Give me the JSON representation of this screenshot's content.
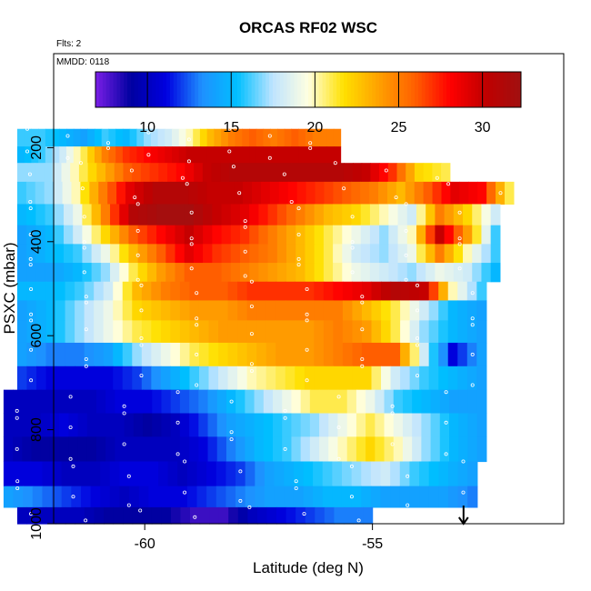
{
  "chart_data": {
    "type": "heatmap",
    "title": "ORCAS RF02 WSC",
    "flights_note": "Flts: 2",
    "date_note": "MMDD: 0118",
    "xlabel": "Latitude (deg N)",
    "ylabel": "PSXC (mbar)",
    "xlim": [
      -62.0,
      -50.8
    ],
    "ylim": [
      1000,
      0
    ],
    "x_ticks": [
      -60,
      -55
    ],
    "x_tick_labels": [
      "-60",
      "-55"
    ],
    "y_ticks": [
      200,
      400,
      600,
      800,
      1000
    ],
    "y_tick_labels": [
      "200",
      "400",
      "600",
      "800",
      "1000"
    ],
    "colorbar": {
      "range": [
        6.9,
        32.3
      ],
      "ticks": [
        10,
        15,
        20,
        25,
        30
      ],
      "tick_labels": [
        "10",
        "15",
        "20",
        "25",
        "30"
      ],
      "colors": [
        "#7a1fe6",
        "#0000a0",
        "#0000e0",
        "#1e90ff",
        "#00bfff",
        "#bfe4ff",
        "#ffffe0",
        "#ffe000",
        "#ffa000",
        "#ff6000",
        "#ff0000",
        "#c00000",
        "#a01010"
      ]
    },
    "marker": {
      "x": -53.0,
      "label": ""
    },
    "layers": [
      {
        "p": 180,
        "x0": -62.8,
        "x1": -55.7,
        "v": [
          16,
          16,
          15,
          14,
          16,
          15,
          17,
          18,
          20,
          23,
          25,
          26,
          25,
          26,
          25,
          25
        ]
      },
      {
        "p": 215,
        "x0": -62.8,
        "x1": -55.7,
        "v": [
          15,
          16,
          18,
          21,
          25,
          27,
          28,
          29,
          30,
          30,
          30,
          30,
          30,
          30,
          30,
          30
        ]
      },
      {
        "p": 250,
        "x0": -62.8,
        "x1": -53.3,
        "v": [
          17,
          17,
          20,
          23,
          26,
          27,
          28,
          30,
          31,
          31,
          31,
          31,
          31,
          30,
          27,
          22,
          21
        ]
      },
      {
        "p": 295,
        "x0": -62.8,
        "x1": -51.9,
        "v": [
          16,
          17,
          20,
          25,
          29,
          31,
          31,
          30,
          30,
          29,
          28,
          27,
          26,
          25,
          23,
          26,
          29,
          28,
          21
        ]
      },
      {
        "p": 345,
        "x0": -62.8,
        "x1": -52.2,
        "v": [
          15,
          16,
          19,
          25,
          31,
          32,
          32,
          30,
          29,
          27,
          25,
          23,
          22,
          20,
          18,
          25,
          22,
          18
        ]
      },
      {
        "p": 385,
        "x0": -62.8,
        "x1": -52.2,
        "v": [
          14,
          15,
          18,
          22,
          26,
          28,
          30,
          28,
          27,
          25,
          23,
          21,
          19,
          17,
          20,
          30,
          24,
          16
        ]
      },
      {
        "p": 425,
        "x0": -62.8,
        "x1": -52.2,
        "v": [
          14,
          15,
          16,
          19,
          23,
          26,
          29,
          27,
          26,
          25,
          23,
          21,
          18,
          17,
          19,
          25,
          20,
          16
        ]
      },
      {
        "p": 465,
        "x0": -62.8,
        "x1": -52.2,
        "v": [
          14,
          14,
          15,
          17,
          21,
          24,
          26,
          26,
          25,
          24,
          23,
          21,
          19,
          18,
          17,
          19,
          18,
          15
        ]
      },
      {
        "p": 505,
        "x0": -62.8,
        "x1": -52.5,
        "v": [
          15,
          15,
          16,
          18,
          23,
          25,
          26,
          26,
          27,
          27,
          27,
          28,
          29,
          31,
          30,
          20,
          16
        ]
      },
      {
        "p": 545,
        "x0": -62.8,
        "x1": -52.5,
        "v": [
          14,
          15,
          17,
          19,
          22,
          23,
          24,
          24,
          25,
          25,
          25,
          25,
          23,
          21,
          18,
          15,
          14
        ]
      },
      {
        "p": 590,
        "x0": -62.8,
        "x1": -52.5,
        "v": [
          14,
          15,
          17,
          19,
          21,
          22,
          23,
          24,
          24,
          24,
          24,
          25,
          24,
          21,
          17,
          15,
          14
        ]
      },
      {
        "p": 640,
        "x0": -62.8,
        "x1": -52.5,
        "v": [
          14,
          13,
          13,
          14,
          17,
          19,
          21,
          22,
          23,
          24,
          24,
          25,
          26,
          26,
          18,
          11,
          14
        ]
      },
      {
        "p": 690,
        "x0": -62.8,
        "x1": -52.5,
        "v": [
          12,
          11,
          11,
          11,
          12,
          14,
          16,
          18,
          20,
          21,
          22,
          22,
          22,
          18,
          16,
          15,
          14
        ]
      },
      {
        "p": 740,
        "x0": -63.1,
        "x1": -52.5,
        "v": [
          10,
          10,
          10,
          10,
          11,
          11,
          12,
          13,
          15,
          17,
          19,
          21,
          21,
          19,
          16,
          15,
          14,
          14
        ]
      },
      {
        "p": 790,
        "x0": -63.1,
        "x1": -52.5,
        "v": [
          10,
          10,
          11,
          10,
          10,
          9,
          10,
          12,
          14,
          15,
          16,
          17,
          19,
          21,
          19,
          17,
          15,
          14
        ]
      },
      {
        "p": 840,
        "x0": -63.1,
        "x1": -52.5,
        "v": [
          10,
          9,
          9,
          9,
          10,
          10,
          10,
          11,
          13,
          15,
          16,
          18,
          20,
          22,
          20,
          17,
          15,
          14
        ]
      },
      {
        "p": 895,
        "x0": -63.1,
        "x1": -52.7,
        "v": [
          11,
          11,
          10,
          10,
          11,
          11,
          10,
          11,
          12,
          14,
          15,
          16,
          17,
          18,
          16,
          15,
          14
        ]
      },
      {
        "p": 945,
        "x0": -63.1,
        "x1": -52.7,
        "v": [
          14,
          13,
          12,
          11,
          10,
          11,
          11,
          12,
          13,
          14,
          14,
          15,
          15,
          14,
          14,
          14,
          13
        ]
      },
      {
        "p": 985,
        "x0": -62.8,
        "x1": -55.0,
        "v": [
          10,
          10,
          10,
          9,
          9,
          9,
          8,
          8,
          10,
          11,
          12,
          13,
          13
        ]
      }
    ]
  }
}
